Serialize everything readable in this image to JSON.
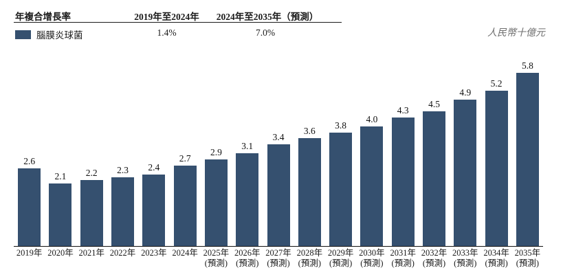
{
  "header": {
    "row_label": "年複合增長率",
    "columns": [
      "2019年至2024年",
      "2024年至2035年（預測）"
    ],
    "series_row": {
      "label": "腦膜炎球菌",
      "values": [
        "1.4%",
        "7.0%"
      ]
    }
  },
  "unit_label": "人民幣十億元",
  "colors": {
    "bar": "#35506F",
    "text": "#1A1A1A",
    "unit_text": "#6E6E6E"
  },
  "chart_data": {
    "type": "bar",
    "title": "",
    "xlabel": "",
    "ylabel": "人民幣十億元",
    "categories": [
      "2019年",
      "2020年",
      "2021年",
      "2022年",
      "2023年",
      "2024年",
      "2025年",
      "2026年",
      "2027年",
      "2028年",
      "2029年",
      "2030年",
      "2031年",
      "2032年",
      "2033年",
      "2034年",
      "2035年"
    ],
    "forecast_suffix": "(預測)",
    "forecast_from_index": 6,
    "series": [
      {
        "name": "腦膜炎球菌",
        "values": [
          2.6,
          2.1,
          2.2,
          2.3,
          2.4,
          2.7,
          2.9,
          3.1,
          3.4,
          3.6,
          3.8,
          4.0,
          4.3,
          4.5,
          4.9,
          5.2,
          5.8
        ]
      }
    ],
    "cagr": {
      "2019-2024": "1.4%",
      "2024-2035 (forecast)": "7.0%"
    },
    "ylim": [
      0,
      6.3
    ],
    "grid": false,
    "legend_position": "top-left",
    "data_labels": true
  }
}
